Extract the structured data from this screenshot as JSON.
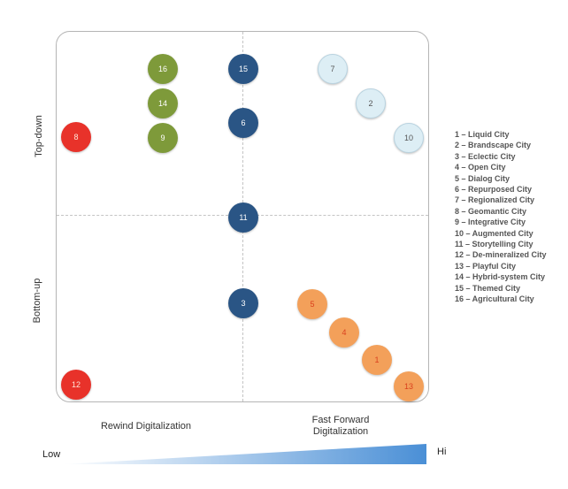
{
  "axes": {
    "y_top": "Top-down",
    "y_bottom": "Bottom-up",
    "x_left": "Rewind Digitalization",
    "x_right_line1": "Fast Forward",
    "x_right_line2": "Digitalization"
  },
  "scale": {
    "low": "Low",
    "high": "Hi"
  },
  "colors": {
    "red": "#e8322a",
    "olive": "#7e9a3a",
    "navy": "#2a5585",
    "lightblue": "#ddeef5",
    "orange": "#f3a05a"
  },
  "nodes": [
    {
      "id": "1",
      "color": "orange"
    },
    {
      "id": "2",
      "color": "lightblue"
    },
    {
      "id": "3",
      "color": "navy"
    },
    {
      "id": "4",
      "color": "orange"
    },
    {
      "id": "5",
      "color": "orange"
    },
    {
      "id": "6",
      "color": "navy"
    },
    {
      "id": "7",
      "color": "lightblue"
    },
    {
      "id": "8",
      "color": "red"
    },
    {
      "id": "9",
      "color": "olive"
    },
    {
      "id": "10",
      "color": "lightblue"
    },
    {
      "id": "11",
      "color": "navy"
    },
    {
      "id": "12",
      "color": "red"
    },
    {
      "id": "13",
      "color": "orange"
    },
    {
      "id": "14",
      "color": "olive"
    },
    {
      "id": "15",
      "color": "navy"
    },
    {
      "id": "16",
      "color": "olive"
    }
  ],
  "legend": [
    "1 – Liquid City",
    "2 – Brandscape City",
    "3 – Eclectic City",
    "4 – Open City",
    "5 – Dialog City",
    "6 – Repurposed City",
    "7 – Regionalized City",
    "8 – Geomantic City",
    "9 – Integrative City",
    "10 – Augmented City",
    "11 – Storytelling City",
    "12 – De-mineralized City",
    "13 – Playful City",
    "14 – Hybrid-system City",
    "15 – Themed City",
    "16 – Agricultural City"
  ]
}
